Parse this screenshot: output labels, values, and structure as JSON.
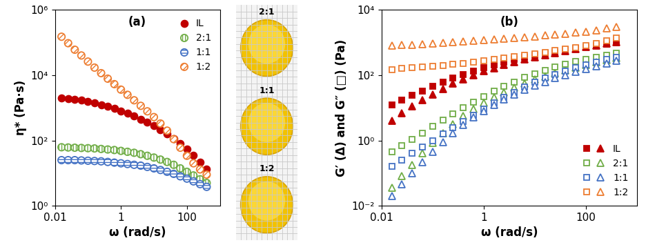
{
  "chart_data": [
    {
      "type": "scatter",
      "title": "(a)",
      "x_label": "ω (rad/s)",
      "y_label": "η* (Pa·s)",
      "log": true,
      "grid": false,
      "legend": "upper right",
      "xlim": [
        0.01,
        1000
      ],
      "xticks": [
        0.01,
        1,
        100
      ],
      "ylim": [
        1,
        1000000
      ],
      "yticks": [
        {
          "value": 1,
          "label": "10⁰"
        },
        {
          "value": 100,
          "label": "10²"
        },
        {
          "value": 10000,
          "label": "10⁴"
        },
        {
          "value": 1000000,
          "label": "10⁶"
        }
      ],
      "x": [
        0.0158,
        0.0251,
        0.0398,
        0.0631,
        0.1,
        0.158,
        0.251,
        0.398,
        0.631,
        1,
        1.58,
        2.51,
        3.98,
        6.31,
        10,
        15.8,
        25.1,
        39.8,
        63.1,
        100,
        158,
        251,
        398
      ],
      "series": [
        {
          "name": "IL",
          "color": "#c00000",
          "marker": "filled circle",
          "values": [
            2000,
            1900,
            1800,
            1700,
            1550,
            1400,
            1250,
            1100,
            950,
            800,
            680,
            560,
            450,
            360,
            280,
            210,
            160,
            115,
            80,
            55,
            36,
            22,
            13
          ]
        },
        {
          "name": "2:1",
          "color": "#70ad47",
          "marker": "vertically hatched circle",
          "values": [
            62,
            61,
            60,
            59,
            58,
            57,
            55,
            53,
            51,
            48,
            45,
            42,
            38,
            34,
            30,
            26,
            22,
            18,
            14,
            11,
            8.5,
            6.5,
            5
          ]
        },
        {
          "name": "1:1",
          "color": "#4472c4",
          "marker": "horizontally hatched circle",
          "values": [
            25,
            25,
            25,
            24.5,
            24,
            23.5,
            23,
            22,
            21,
            20,
            19,
            18,
            17,
            15.5,
            14,
            12.5,
            11,
            9.5,
            8,
            6.8,
            5.6,
            4.6,
            3.8
          ]
        },
        {
          "name": "1:2",
          "color": "#ed7d31",
          "marker": "diagonally hatched circle",
          "values": [
            150000,
            95000,
            60000,
            40000,
            26000,
            17000,
            11500,
            7800,
            5300,
            3600,
            2500,
            1700,
            1150,
            780,
            520,
            330,
            200,
            110,
            60,
            34,
            20,
            13,
            9
          ]
        }
      ]
    },
    {
      "type": "scatter",
      "title": "(b)",
      "x_label": "ω (rad/s)",
      "y_label": "G′ (Δ) and G″ (□) (Pa)",
      "log": true,
      "grid": false,
      "legend": "lower right",
      "xlim": [
        0.01,
        1000
      ],
      "xticks": [
        0.01,
        1,
        100
      ],
      "ylim": [
        0.01,
        10000
      ],
      "yticks": [
        {
          "value": 0.01,
          "label": "10⁻²"
        },
        {
          "value": 1,
          "label": "10⁰"
        },
        {
          "value": 100,
          "label": "10²"
        },
        {
          "value": 10000,
          "label": "10⁴"
        }
      ],
      "x": [
        0.0158,
        0.0251,
        0.0398,
        0.0631,
        0.1,
        0.158,
        0.251,
        0.398,
        0.631,
        1,
        1.58,
        2.51,
        3.98,
        6.31,
        10,
        15.8,
        25.1,
        39.8,
        63.1,
        100,
        158,
        251,
        398
      ],
      "series": [
        {
          "name": "IL",
          "color": "#c00000",
          "marker": "filled",
          "G_prime": [
            4,
            7,
            11,
            17,
            26,
            38,
            55,
            75,
            100,
            130,
            165,
            205,
            250,
            300,
            350,
            410,
            480,
            550,
            630,
            720,
            820,
            920,
            1050
          ],
          "G_double_prime": [
            12,
            17,
            24,
            33,
            45,
            60,
            80,
            105,
            135,
            170,
            210,
            255,
            300,
            350,
            400,
            460,
            520,
            590,
            660,
            740,
            820,
            900,
            980
          ]
        },
        {
          "name": "2:1",
          "color": "#70ad47",
          "marker": "hollow",
          "G_prime": [
            0.035,
            0.08,
            0.18,
            0.4,
            0.85,
            1.7,
            3.2,
            5.5,
            9,
            14,
            21,
            30,
            42,
            56,
            73,
            92,
            115,
            140,
            170,
            205,
            245,
            290,
            340
          ],
          "G_double_prime": [
            0.45,
            0.7,
            1.1,
            1.7,
            2.7,
            4.2,
            6.5,
            10,
            15,
            22,
            32,
            45,
            62,
            85,
            110,
            140,
            175,
            215,
            260,
            310,
            360,
            410,
            470
          ]
        },
        {
          "name": "1:1",
          "color": "#4472c4",
          "marker": "hollow",
          "G_prime": [
            0.02,
            0.045,
            0.1,
            0.22,
            0.45,
            0.9,
            1.7,
            3,
            5,
            8,
            12.5,
            18.5,
            26,
            36,
            48,
            62,
            80,
            100,
            125,
            155,
            190,
            230,
            280
          ],
          "G_double_prime": [
            0.16,
            0.25,
            0.4,
            0.63,
            1,
            1.6,
            2.5,
            3.9,
            6,
            9,
            14,
            21,
            30,
            43,
            60,
            80,
            105,
            135,
            170,
            210,
            250,
            300,
            350
          ]
        },
        {
          "name": "1:2",
          "color": "#ed7d31",
          "marker": "hollow",
          "G_prime": [
            800,
            830,
            860,
            890,
            930,
            970,
            1010,
            1060,
            1110,
            1170,
            1230,
            1300,
            1380,
            1460,
            1550,
            1650,
            1760,
            1880,
            2020,
            2180,
            2380,
            2650,
            3000
          ],
          "G_double_prime": [
            150,
            158,
            167,
            177,
            188,
            200,
            215,
            232,
            252,
            275,
            300,
            330,
            365,
            405,
            450,
            500,
            560,
            630,
            710,
            800,
            950,
            1150,
            1400
          ]
        }
      ]
    }
  ],
  "photo": {
    "labels": [
      "2:1",
      "1:1",
      "1:2"
    ]
  }
}
